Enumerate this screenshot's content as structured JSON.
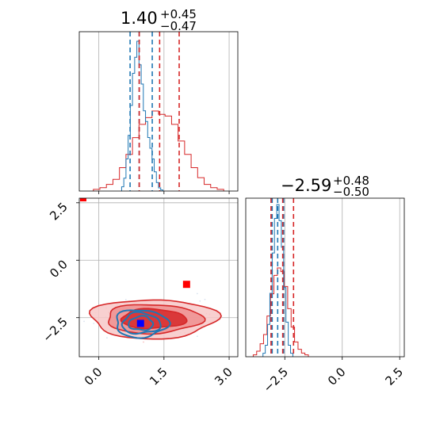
{
  "chart_data": {
    "type": "corner",
    "colors": {
      "series_a": "#d62728",
      "series_b": "#1f77b4",
      "marker_a": "#ff0000",
      "marker_b": "#0000ff",
      "grid": "#b0b0b0"
    },
    "grid": true,
    "panels": {
      "top_hist": {
        "title": {
          "value": "1.40",
          "upper": "+0.45",
          "lower": "−0.47"
        },
        "x_range": [
          -0.45,
          3.2
        ],
        "red_quantiles": [
          0.93,
          1.4,
          1.85
        ],
        "blue_quantiles": [
          0.72,
          0.93,
          1.23
        ],
        "red_hist": {
          "x": [
            -0.05,
            0.1,
            0.25,
            0.4,
            0.55,
            0.7,
            0.85,
            1.0,
            1.15,
            1.3,
            1.45,
            1.6,
            1.75,
            1.9,
            2.05,
            2.2,
            2.35,
            2.5,
            2.65,
            2.8
          ],
          "counts": [
            1,
            2,
            4,
            7,
            14,
            22,
            32,
            40,
            44,
            48,
            46,
            45,
            40,
            30,
            22,
            14,
            8,
            4,
            2,
            1
          ]
        },
        "blue_hist": {
          "x": [
            0.55,
            0.6,
            0.65,
            0.7,
            0.75,
            0.8,
            0.85,
            0.9,
            0.95,
            1.0,
            1.05,
            1.1,
            1.15,
            1.2,
            1.25,
            1.3,
            1.35,
            1.4,
            1.45
          ],
          "counts": [
            4,
            12,
            30,
            52,
            80,
            110,
            125,
            140,
            118,
            100,
            75,
            65,
            50,
            40,
            30,
            18,
            8,
            3,
            1
          ]
        }
      },
      "right_hist": {
        "title": {
          "value": "−2.59",
          "upper": "+0.48",
          "lower": "−0.50"
        },
        "x_range": [
          -4.2,
          2.7
        ],
        "red_quantiles": [
          -3.1,
          -2.59,
          -2.12
        ],
        "blue_quantiles": [
          -3.05,
          -2.81,
          -2.55
        ],
        "red_hist": {
          "x": [
            -3.8,
            -3.65,
            -3.5,
            -3.35,
            -3.2,
            -3.05,
            -2.9,
            -2.75,
            -2.6,
            -2.45,
            -2.3,
            -2.15,
            -2.0,
            -1.85,
            -1.7,
            -1.55
          ],
          "counts": [
            1,
            3,
            7,
            12,
            22,
            34,
            44,
            48,
            46,
            38,
            26,
            16,
            8,
            4,
            2,
            1
          ]
        },
        "blue_hist": {
          "x": [
            -3.4,
            -3.3,
            -3.2,
            -3.1,
            -3.0,
            -2.9,
            -2.8,
            -2.7,
            -2.6,
            -2.5,
            -2.4,
            -2.3,
            -2.2
          ],
          "counts": [
            3,
            10,
            28,
            55,
            90,
            120,
            132,
            118,
            95,
            60,
            30,
            10,
            3
          ]
        }
      },
      "joint": {
        "x_range": [
          -0.45,
          3.2
        ],
        "y_range": [
          -4.2,
          2.7
        ],
        "red_marker": [
          2.02,
          -1.05
        ],
        "blue_marker": [
          0.96,
          -2.75
        ],
        "red_corner_marker": [
          -0.35,
          2.55
        ],
        "red_center": [
          1.25,
          -2.55
        ],
        "blue_center": [
          0.97,
          -2.75
        ],
        "red_contour_radii": [
          [
            1.45,
            0.85
          ],
          [
            1.1,
            0.63
          ],
          [
            0.75,
            0.42
          ]
        ],
        "blue_contour_radii": [
          [
            0.6,
            0.6
          ],
          [
            0.44,
            0.45
          ],
          [
            0.28,
            0.3
          ]
        ]
      }
    },
    "ticks": {
      "joint_x": [
        "0.0",
        "1.5",
        "3.0"
      ],
      "joint_x_values": [
        0.0,
        1.5,
        3.0
      ],
      "joint_y": [
        "2.5",
        "0.0",
        "−2.5"
      ],
      "joint_y_values": [
        2.5,
        0.0,
        -2.5
      ],
      "right_x": [
        "−2.5",
        "0.0",
        "2.5"
      ],
      "right_x_values": [
        -2.5,
        0.0,
        2.5
      ]
    }
  }
}
